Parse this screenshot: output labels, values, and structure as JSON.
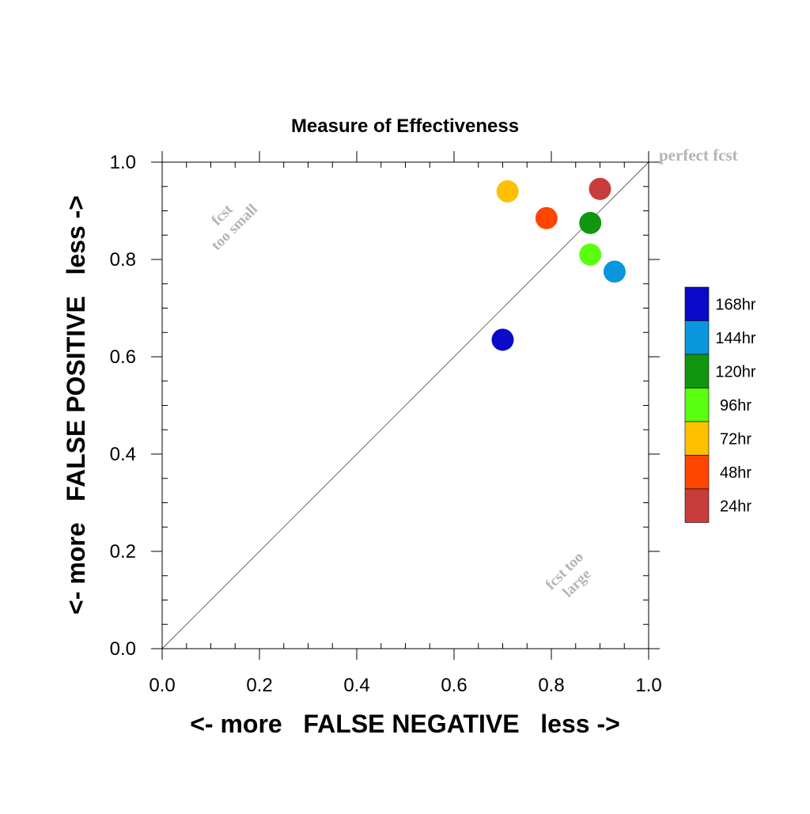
{
  "chart_data": {
    "type": "scatter",
    "title": "Measure of Effectiveness",
    "xlabel": "<- more   FALSE NEGATIVE   less ->",
    "ylabel": "<- more   FALSE POSITIVE   less ->",
    "xlim": [
      0,
      1
    ],
    "ylim": [
      0,
      1
    ],
    "x_ticks": [
      "0.0",
      "0.2",
      "0.4",
      "0.6",
      "0.8",
      "1.0"
    ],
    "y_ticks": [
      "0.0",
      "0.2",
      "0.4",
      "0.6",
      "0.8",
      "1.0"
    ],
    "grid": false,
    "legend_position": "right",
    "reference_line": {
      "from": [
        0,
        0
      ],
      "to": [
        1,
        1
      ],
      "label": "perfect fcst"
    },
    "annotations": {
      "upper_left": [
        "fcst",
        "too small"
      ],
      "lower_right": [
        "fcst too",
        "large"
      ]
    },
    "series": [
      {
        "name": "168hr",
        "color": "#0a0ac8",
        "x": 0.7,
        "y": 0.635
      },
      {
        "name": "144hr",
        "color": "#0a96dc",
        "x": 0.93,
        "y": 0.775
      },
      {
        "name": "120hr",
        "color": "#10960f",
        "x": 0.88,
        "y": 0.875
      },
      {
        "name": "96hr",
        "color": "#5aff10",
        "x": 0.88,
        "y": 0.81
      },
      {
        "name": "72hr",
        "color": "#ffc000",
        "x": 0.71,
        "y": 0.94
      },
      {
        "name": "48hr",
        "color": "#ff4500",
        "x": 0.79,
        "y": 0.885
      },
      {
        "name": "24hr",
        "color": "#c83c3c",
        "x": 0.9,
        "y": 0.945
      }
    ]
  }
}
